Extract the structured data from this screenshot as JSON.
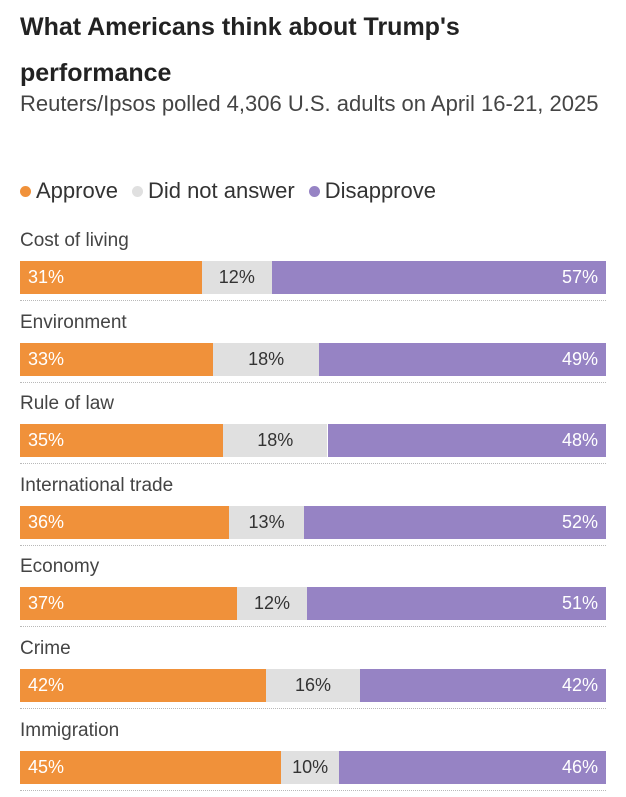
{
  "chart_data": {
    "type": "bar",
    "orientation": "horizontal",
    "stacked": true,
    "title": "What Americans think about Trump's performance",
    "subtitle": "Reuters/Ipsos polled 4,306 U.S. adults on April 16-21, 2025",
    "legend_position": "top-left",
    "categories": [
      "Cost of living",
      "Environment",
      "Rule of law",
      "International trade",
      "Economy",
      "Crime",
      "Immigration"
    ],
    "series": [
      {
        "name": "Approve",
        "color": "#f0913a",
        "values": [
          31,
          33,
          35,
          36,
          37,
          42,
          45
        ],
        "labels": [
          "31%",
          "33%",
          "35%",
          "36%",
          "37%",
          "42%",
          "45%"
        ]
      },
      {
        "name": "Did not answer",
        "color": "#e0e0e0",
        "values": [
          12,
          18,
          18,
          13,
          12,
          16,
          10
        ],
        "labels": [
          "12%",
          "18%",
          "18%",
          "13%",
          "12%",
          "16%",
          "10%"
        ]
      },
      {
        "name": "Disapprove",
        "color": "#9683c4",
        "values": [
          57,
          49,
          48,
          52,
          51,
          42,
          46
        ],
        "labels": [
          "57%",
          "49%",
          "48%",
          "52%",
          "51%",
          "42%",
          "46%"
        ]
      }
    ],
    "grid": false
  }
}
